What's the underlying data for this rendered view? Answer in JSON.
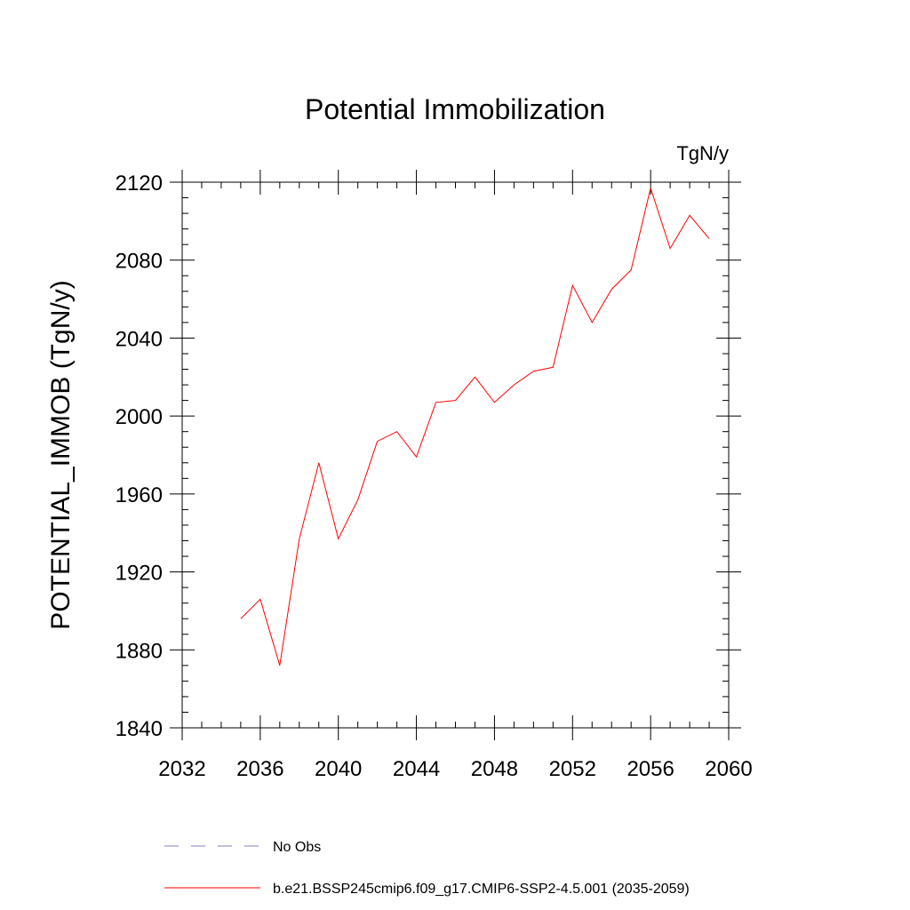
{
  "chart_data": {
    "type": "line",
    "title": "Potential Immobilization",
    "units": "TgN/y",
    "ylabel": "POTENTIAL_IMMOB  (TgN/y)",
    "xlabel": "",
    "xlim": [
      2032,
      2060
    ],
    "ylim": [
      1840,
      2120
    ],
    "x_ticks": [
      2032,
      2036,
      2040,
      2044,
      2048,
      2052,
      2056,
      2060
    ],
    "y_ticks": [
      1840,
      1880,
      1920,
      1960,
      2000,
      2040,
      2080,
      2120
    ],
    "x_tick_labels": [
      "2032",
      "2036",
      "2040",
      "2044",
      "2048",
      "2052",
      "2056",
      "2060"
    ],
    "y_tick_labels": [
      "1840",
      "1880",
      "1920",
      "1960",
      "2000",
      "2040",
      "2080",
      "2120"
    ],
    "grid": false,
    "legend_placement": "bottom",
    "series": [
      {
        "name": "b.e21.BSSP245cmip6.f09_g17.CMIP6-SSP2-4.5.001 (2035-2059)",
        "color": "#ff0000",
        "style": "solid",
        "x": [
          2035,
          2036,
          2037,
          2038,
          2039,
          2040,
          2041,
          2042,
          2043,
          2044,
          2045,
          2046,
          2047,
          2048,
          2049,
          2050,
          2051,
          2052,
          2053,
          2054,
          2055,
          2056,
          2057,
          2058,
          2059
        ],
        "y": [
          1896,
          1906,
          1872,
          1937,
          1976,
          1937,
          1957,
          1987,
          1992,
          1979,
          2007,
          2008,
          2020,
          2007,
          2016,
          2023,
          2025,
          2067,
          2048,
          2065,
          2075,
          2117,
          2086,
          2103,
          2091
        ]
      }
    ],
    "legend": [
      {
        "label": "No Obs",
        "color": "#8080c0",
        "style": "dashed"
      },
      {
        "label": "b.e21.BSSP245cmip6.f09_g17.CMIP6-SSP2-4.5.001 (2035-2059)",
        "color": "#ff0000",
        "style": "solid"
      }
    ]
  }
}
